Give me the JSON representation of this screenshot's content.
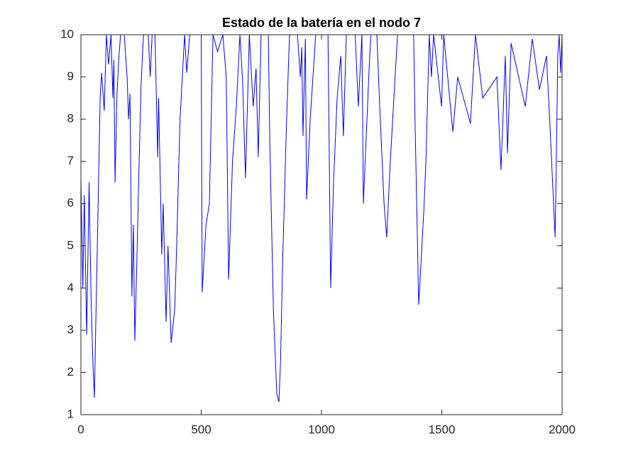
{
  "chart_data": {
    "type": "line",
    "title": "Estado de la batería en el nodo 7",
    "x": [
      0,
      8,
      14,
      24,
      34,
      42,
      50,
      56,
      62,
      70,
      80,
      86,
      97,
      106,
      115,
      125,
      133,
      137,
      142,
      150,
      158,
      165,
      180,
      192,
      198,
      204,
      212,
      218,
      224,
      232,
      240,
      250,
      260,
      280,
      288,
      296,
      308,
      319,
      323,
      336,
      342,
      354,
      362,
      375,
      390,
      398,
      412,
      431,
      440,
      452,
      500,
      504,
      520,
      534,
      549,
      568,
      590,
      604,
      614,
      630,
      646,
      661,
      672,
      684,
      700,
      716,
      728,
      737,
      749,
      779,
      785,
      800,
      814,
      823,
      830,
      838,
      855,
      867,
      900,
      912,
      918,
      923,
      933,
      938,
      953,
      976,
      1027,
      1038,
      1050,
      1065,
      1080,
      1091,
      1103,
      1140,
      1153,
      1168,
      1174,
      1198,
      1205,
      1230,
      1242,
      1260,
      1271,
      1286,
      1316,
      1383,
      1389,
      1404,
      1425,
      1434,
      1448,
      1457,
      1466,
      1499,
      1508,
      1546,
      1566,
      1619,
      1640,
      1670,
      1729,
      1746,
      1764,
      1773,
      1788,
      1847,
      1876,
      1906,
      1935,
      1950,
      1971,
      1976,
      1982,
      1988,
      1994,
      2000
    ],
    "series": [
      {
        "color": "#0000ff",
        "values": [
          6.6,
          4.0,
          6.2,
          2.9,
          6.5,
          3.8,
          2.2,
          1.4,
          3.2,
          5.5,
          8.5,
          9.1,
          8.2,
          10,
          9.3,
          10,
          8.5,
          9.4,
          6.5,
          8.6,
          9.5,
          10,
          10,
          9.0,
          8.0,
          8.6,
          3.8,
          5.5,
          2.75,
          4.5,
          6.5,
          8.8,
          10,
          10,
          9.0,
          10,
          10,
          7.1,
          8.5,
          4.8,
          6.0,
          3.2,
          5.0,
          2.7,
          3.5,
          5.0,
          8.0,
          10,
          9.1,
          10,
          10,
          3.9,
          5.5,
          6.0,
          10,
          9.6,
          10,
          9.0,
          4.2,
          7.0,
          8.3,
          10,
          8.9,
          6.6,
          10,
          8.3,
          9.2,
          7.1,
          10,
          10,
          7.5,
          3.5,
          1.5,
          1.3,
          2.3,
          4.5,
          8.0,
          10,
          10,
          9.0,
          9.7,
          7.6,
          9.9,
          6.1,
          8.0,
          10,
          10,
          4.0,
          6.5,
          8.5,
          9.5,
          7.6,
          10,
          10,
          8.3,
          10,
          6.0,
          9.2,
          10,
          10,
          8.3,
          6.0,
          5.2,
          7.0,
          10,
          10,
          7.9,
          3.6,
          5.8,
          7.0,
          10,
          9.0,
          10,
          8.3,
          10,
          7.7,
          9.0,
          7.9,
          10,
          8.5,
          9.0,
          6.8,
          9.5,
          7.2,
          9.8,
          8.3,
          9.9,
          8.7,
          9.5,
          7.8,
          5.2,
          7.0,
          9.5,
          10,
          9.1,
          10
        ]
      }
    ],
    "xlim": [
      0,
      2000
    ],
    "xticks": [
      0,
      500,
      1000,
      1500,
      2000
    ],
    "ylim": [
      1,
      10
    ],
    "yticks": [
      1,
      2,
      3,
      4,
      5,
      6,
      7,
      8,
      9,
      10
    ]
  }
}
